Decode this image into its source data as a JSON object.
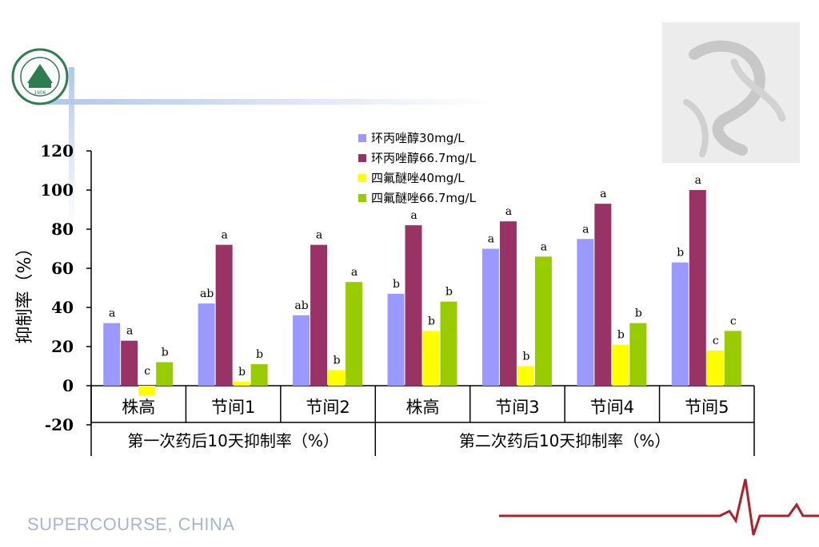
{
  "footer": {
    "text": "SUPERCOURSE, CHINA"
  },
  "logo": {
    "year": "1906"
  },
  "chart_data": {
    "type": "bar",
    "ylabel": "抑制率（%）",
    "ylim": [
      -20,
      120
    ],
    "yticks": [
      -20,
      0,
      20,
      40,
      60,
      80,
      100,
      120
    ],
    "categories": [
      "株高",
      "节间1",
      "节间2",
      "株高",
      "节间3",
      "节间4",
      "节间5"
    ],
    "groups": [
      {
        "label": "第一次药后10天抑制率（%）",
        "categories": [
          0,
          1,
          2
        ]
      },
      {
        "label": "第二次药后10天抑制率（%）",
        "categories": [
          3,
          4,
          5,
          6
        ]
      }
    ],
    "series": [
      {
        "name": "环丙唑醇30mg/L",
        "color": "#9999ff",
        "values": [
          32,
          42,
          36,
          47,
          70,
          75,
          63
        ],
        "labels": [
          "a",
          "ab",
          "ab",
          "b",
          "a",
          "a",
          "b"
        ]
      },
      {
        "name": "环丙唑醇66.7mg/L",
        "color": "#993366",
        "values": [
          23,
          72,
          72,
          82,
          84,
          93,
          100
        ],
        "labels": [
          "a",
          "a",
          "a",
          "a",
          "a",
          "a",
          "a"
        ]
      },
      {
        "name": "四氟醚唑40mg/L",
        "color": "#ffff00",
        "values": [
          -5,
          2,
          8,
          28,
          10,
          21,
          18
        ],
        "labels": [
          "c",
          "b",
          "b",
          "b",
          "b",
          "b",
          "c"
        ]
      },
      {
        "name": "四氟醚唑66.7mg/L",
        "color": "#99cc00",
        "values": [
          12,
          11,
          53,
          43,
          66,
          32,
          28
        ],
        "labels": [
          "b",
          "b",
          "a",
          "b",
          "a",
          "b",
          "c"
        ]
      }
    ],
    "legend_position": "top-center"
  }
}
